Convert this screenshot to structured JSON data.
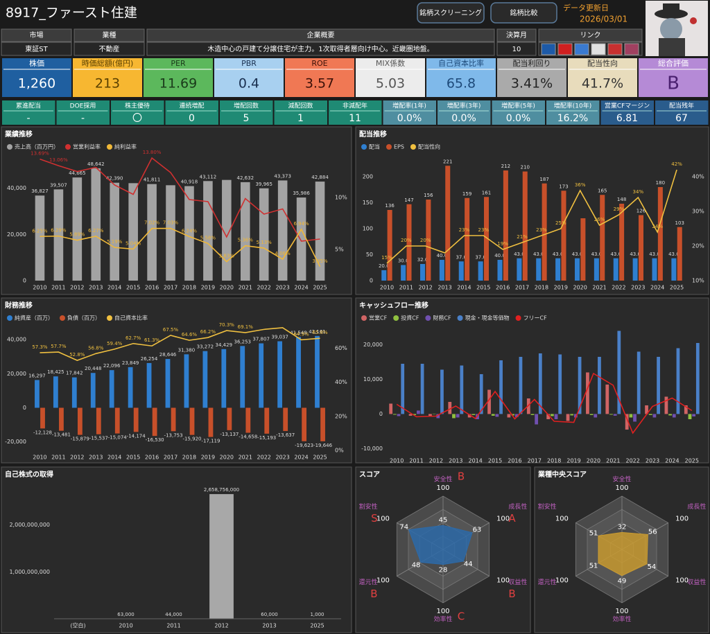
{
  "header": {
    "title": "8917_ファースト住建",
    "buttons": [
      "銘柄スクリーニング",
      "銘柄比較"
    ],
    "update_label": "データ更新日",
    "update_date": "2026/03/01"
  },
  "info": {
    "headers": [
      "市場",
      "業種",
      "企業概要",
      "決算月",
      "リンク"
    ],
    "values": [
      "東証ST",
      "不動産",
      "木造中心の戸建て分譲住宅が主力。1次取得者層向け中心。近畿圏地盤。",
      "10"
    ]
  },
  "kpi": [
    {
      "label": "株価",
      "value": "1,260"
    },
    {
      "label": "時価総額(億円)",
      "value": "213"
    },
    {
      "label": "PER",
      "value": "11.69"
    },
    {
      "label": "PBR",
      "value": "0.4"
    },
    {
      "label": "ROE",
      "value": "3.57"
    },
    {
      "label": "MIX係数",
      "value": "5.03"
    },
    {
      "label": "自己資本比率",
      "value": "65.8"
    },
    {
      "label": "配当利回り",
      "value": "3.41%"
    },
    {
      "label": "配当性向",
      "value": "41.7%"
    },
    {
      "label": "総合評価",
      "value": "B"
    }
  ],
  "stats": [
    {
      "label": "累進配当",
      "value": "-"
    },
    {
      "label": "DOE採用",
      "value": "-"
    },
    {
      "label": "株主優待",
      "value": "〇"
    },
    {
      "label": "連続増配",
      "value": "0"
    },
    {
      "label": "増配回数",
      "value": "5"
    },
    {
      "label": "減配回数",
      "value": "1"
    },
    {
      "label": "非減配年",
      "value": "11"
    },
    {
      "label": "増配率(1年)",
      "value": "0.0%"
    },
    {
      "label": "増配率(3年)",
      "value": "0.0%"
    },
    {
      "label": "増配率(5年)",
      "value": "0.0%"
    },
    {
      "label": "増配率(10年)",
      "value": "16.2%"
    },
    {
      "label": "営業CFマージン",
      "value": "6.81"
    },
    {
      "label": "配当残年",
      "value": "67"
    }
  ],
  "chart_data": [
    {
      "type": "combo",
      "title": "業績推移",
      "grid": false,
      "categories": [
        "2010",
        "2011",
        "2012",
        "2013",
        "2014",
        "2015",
        "2016",
        "2017",
        "2018",
        "2019",
        "2020",
        "2021",
        "2022",
        "2023",
        "2024",
        "2025"
      ],
      "ylim": [
        0,
        54000
      ],
      "yticks": [
        0,
        {
          "value": 20000,
          "label": "20,000"
        },
        {
          "value": 40000,
          "label": "40,000"
        }
      ],
      "y2lim": [
        2,
        14
      ],
      "y2ticks": [
        {
          "value": 5,
          "label": "5%"
        },
        {
          "value": 10,
          "label": "10%"
        }
      ],
      "series": [
        {
          "name": "売上高（百万円）",
          "type": "bar",
          "color": "#a3a3a3",
          "values": [
            36827,
            39507,
            44665,
            48642,
            42390,
            42200,
            41811,
            41300,
            40918,
            43112,
            43600,
            42632,
            39965,
            43373,
            35986,
            42884
          ],
          "value_labels": [
            "36,827",
            "39,507",
            "44,665",
            "48,642",
            "42,390",
            null,
            "41,811",
            null,
            "40,918",
            "43,112",
            null,
            "42,632",
            "39,965",
            "43,373",
            "35,986",
            "42,884"
          ]
        },
        {
          "name": "営業利益率",
          "type": "line",
          "axis": "y2",
          "color": "#d03030",
          "values": [
            13.69,
            13.06,
            12.5,
            12.9,
            11.2,
            10.3,
            13.8,
            12.4,
            9.8,
            9.6,
            6.2,
            9.9,
            8.4,
            8.9,
            5.8,
            6.0
          ],
          "value_labels": [
            "13.69%",
            "13.06%",
            null,
            null,
            null,
            null,
            "13.80%",
            null,
            null,
            null,
            null,
            null,
            null,
            null,
            null,
            null
          ]
        },
        {
          "name": "純利益率",
          "type": "line",
          "axis": "y2",
          "color": "#f0b838",
          "values": [
            6.25,
            6.29,
            5.89,
            6.27,
            5.19,
            5.04,
            7.02,
            7.03,
            6.24,
            5.58,
            3.83,
            5.36,
            5.13,
            4.06,
            6.94,
            3.35
          ],
          "value_labels": [
            "6.25%",
            "6.29%",
            "5.89%",
            "6.27%",
            "5.19%",
            "5.04%",
            "7.02%",
            "7.03%",
            "6.24%",
            "5.58%",
            "3.83%",
            "5.36%",
            "5.13%",
            "4.06%",
            "6.94%",
            "3.35%"
          ]
        }
      ]
    },
    {
      "type": "combo",
      "title": "配当推移",
      "grid": false,
      "categories": [
        "2010",
        "2011",
        "2012",
        "2013",
        "2014",
        "2015",
        "2016",
        "2017",
        "2018",
        "2019",
        "2020",
        "2021",
        "2022",
        "2023",
        "2024",
        "2025"
      ],
      "ylim": [
        0,
        240
      ],
      "yticks": [
        0,
        50,
        100,
        150,
        200
      ],
      "y2lim": [
        10,
        46
      ],
      "y2ticks": [
        {
          "value": 10,
          "label": "10%"
        },
        {
          "value": 20,
          "label": "20%"
        },
        {
          "value": 30,
          "label": "30%"
        },
        {
          "value": 40,
          "label": "40%"
        }
      ],
      "series": [
        {
          "name": "配当",
          "type": "bar",
          "color": "#2f7fd0",
          "values": [
            20,
            30,
            32,
            40,
            37,
            37,
            40,
            43,
            43,
            43,
            43,
            43,
            43,
            43,
            43,
            43
          ],
          "value_labels": [
            "20.0",
            "30.0",
            "32.0",
            "40.0",
            "37.0",
            "37.0",
            "40.0",
            "43.0",
            "43.0",
            "43.0",
            "43.0",
            "43.0",
            "43.0",
            "43.0",
            "43.0",
            "43.0"
          ]
        },
        {
          "name": "EPS",
          "type": "bar",
          "color": "#c8502a",
          "values": [
            136,
            147,
            156,
            221,
            159,
            161,
            212,
            210,
            187,
            173,
            120,
            165,
            148,
            126,
            180,
            103
          ],
          "value_labels": [
            "136",
            "147",
            "156",
            "221",
            "159",
            "161",
            "212",
            "210",
            "187",
            "173",
            null,
            "165",
            "148",
            "126",
            "180",
            "103"
          ]
        },
        {
          "name": "配当性向",
          "type": "line",
          "axis": "y2",
          "color": "#f0c040",
          "values": [
            15,
            20,
            20,
            18,
            23,
            23,
            19,
            21,
            23,
            25,
            36,
            26,
            29,
            34,
            24,
            42
          ],
          "value_labels": [
            "15%",
            "20%",
            "20%",
            null,
            "23%",
            "23%",
            "19%",
            "21%",
            "23%",
            "25%",
            "36%",
            "26%",
            "29%",
            "34%",
            "24%",
            "42%"
          ]
        }
      ]
    },
    {
      "type": "combo",
      "title": "財務推移",
      "grid": false,
      "categories": [
        "2010",
        "2011",
        "2012",
        "2013",
        "2014",
        "2015",
        "2016",
        "2017",
        "2018",
        "2019",
        "2020",
        "2021",
        "2022",
        "2023",
        "2024",
        "2025"
      ],
      "ylim": [
        -25000,
        49000
      ],
      "yticks": [
        {
          "value": -20000,
          "label": "-20,000"
        },
        0,
        {
          "value": 20000,
          "label": "20,000"
        },
        {
          "value": 40000,
          "label": "40,000"
        }
      ],
      "y2lim": [
        0,
        74
      ],
      "y2ticks": [
        {
          "value": 0,
          "label": "0%"
        },
        {
          "value": 20,
          "label": "20%"
        },
        {
          "value": 40,
          "label": "40%"
        },
        {
          "value": 60,
          "label": "60%"
        }
      ],
      "series": [
        {
          "name": "純資産（百万）",
          "type": "bar",
          "color": "#2f7fd0",
          "values": [
            16297,
            18425,
            17842,
            20448,
            22096,
            23849,
            26254,
            28646,
            31380,
            33272,
            34429,
            36253,
            37807,
            39037,
            41549,
            42161
          ],
          "value_labels": [
            "16,297",
            "18,425",
            "17,842",
            "20,448",
            "22,096",
            "23,849",
            "26,254",
            "28,646",
            "31,380",
            "33,272",
            "34,429",
            "36,253",
            "37,807",
            "39,037",
            "41,549",
            "42,161"
          ]
        },
        {
          "name": "負債（百万）",
          "type": "bar",
          "color": "#c8502a",
          "values": [
            -12128,
            -13481,
            -15879,
            -15537,
            -15074,
            -14174,
            -16530,
            -13753,
            -15920,
            -17119,
            -13137,
            -14658,
            -15193,
            -13637,
            -19623,
            -19646
          ],
          "value_labels": [
            "-12,128",
            "-13,481",
            "-15,879",
            "-15,537",
            "-15,074",
            "-14,174",
            "-16,530",
            "-13,753",
            "-15,920",
            "-17,119",
            "-13,137",
            "-14,658",
            "-15,193",
            "-13,637",
            "-19,623",
            "-19,646"
          ]
        },
        {
          "name": "自己資本比率",
          "type": "line",
          "axis": "y2",
          "color": "#f0c040",
          "values": [
            57.3,
            57.7,
            52.8,
            56.8,
            59.4,
            62.7,
            61.3,
            67.5,
            64.6,
            66.2,
            70.3,
            69.1,
            71,
            72,
            64.9,
            65.8
          ],
          "value_labels": [
            "57.3%",
            "57.7%",
            "52.8%",
            "56.8%",
            "59.4%",
            "62.7%",
            "61.3%",
            "67.5%",
            "64.6%",
            "66.2%",
            "70.3%",
            "69.1%",
            null,
            null,
            "64.9%",
            "65.8%"
          ]
        }
      ]
    },
    {
      "type": "combo",
      "title": "キャッシュフロー推移",
      "grid": false,
      "categories": [
        "2010",
        "2011",
        "2012",
        "2013",
        "2014",
        "2015",
        "2016",
        "2017",
        "2018",
        "2019",
        "2020",
        "2021",
        "2022",
        "2023",
        "2024",
        "2025"
      ],
      "ylim": [
        -11500,
        24500
      ],
      "yticks": [
        {
          "value": -10000,
          "label": "-10,000"
        },
        0,
        {
          "value": 10000,
          "label": "10,000"
        },
        {
          "value": 20000,
          "label": "20,000"
        }
      ],
      "series": [
        {
          "name": "営業CF",
          "type": "bar",
          "color": "#d06464",
          "values": [
            3000,
            -500,
            -500,
            3500,
            -1000,
            7000,
            -1000,
            4500,
            -1500,
            -2000,
            12000,
            8500,
            -4500,
            2500,
            5000,
            2500
          ]
        },
        {
          "name": "投資CF",
          "type": "bar",
          "color": "#90c040",
          "values": [
            -200,
            -300,
            -100,
            -1200,
            -300,
            -500,
            -400,
            -300,
            -600,
            -400,
            -300,
            -200,
            -1000,
            -300,
            -400,
            -1500
          ]
        },
        {
          "name": "財務CF",
          "type": "bar",
          "color": "#7050b0",
          "values": [
            -600,
            1000,
            -1200,
            -1000,
            -1500,
            -800,
            -900,
            -3000,
            -1500,
            -1000,
            -1000,
            -500,
            -2200,
            -1000,
            -1000,
            -700
          ]
        },
        {
          "name": "現金・現金等価物",
          "type": "bar",
          "color": "#4a80c8",
          "values": [
            14500,
            14500,
            12800,
            14000,
            11500,
            15500,
            16500,
            17500,
            17200,
            16500,
            16500,
            24000,
            18000,
            16500,
            19000,
            20500
          ]
        },
        {
          "name": "フリーCF",
          "type": "line",
          "color": "#e02020",
          "values": [
            2800,
            -800,
            -600,
            2300,
            -1300,
            6500,
            -1400,
            4200,
            -2100,
            -2400,
            11700,
            8300,
            -5500,
            2200,
            4600,
            1000
          ]
        }
      ]
    },
    {
      "type": "bar",
      "title": "自己株式の取得",
      "grid": false,
      "color": "#a8a8a8",
      "categories": [
        "(空白)",
        "2010",
        "2011",
        "2012",
        "2013",
        "2025"
      ],
      "values": [
        null,
        63000,
        44000,
        2658756000,
        60000,
        1000
      ],
      "value_labels": [
        null,
        "63,000",
        "44,000",
        "2,658,756,000",
        "60,000",
        "1,000"
      ],
      "ylim": [
        0,
        3000000000
      ],
      "yticks": [
        {
          "value": 1000000000,
          "label": "1,000,000,000"
        },
        {
          "value": 2000000000,
          "label": "2,000,000,000"
        }
      ]
    },
    {
      "type": "radar",
      "title": "スコア",
      "color": "#2d6aa8",
      "rlim": [
        0,
        100
      ],
      "categories": [
        "安全性",
        "成長性",
        "収益性",
        "効率性",
        "還元性",
        "割安性"
      ],
      "values": [
        45,
        63,
        44,
        28,
        48,
        74
      ],
      "grades": [
        "B",
        "A",
        "B",
        "C",
        "B",
        "S"
      ]
    },
    {
      "type": "radar",
      "title": "業種中央スコア",
      "color": "#c89a30",
      "rlim": [
        0,
        100
      ],
      "categories": [
        "安全性",
        "成長性",
        "収益性",
        "効率性",
        "還元性",
        "割安性"
      ],
      "values": [
        32,
        56,
        54,
        49,
        51,
        51
      ]
    }
  ]
}
